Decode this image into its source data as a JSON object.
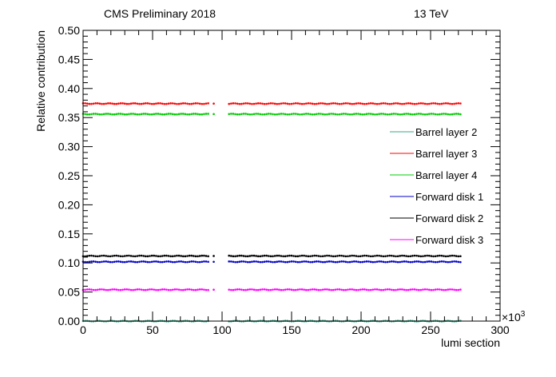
{
  "header": {
    "left_text": "CMS Preliminary 2018",
    "right_text": "13 TeV"
  },
  "chart_data": {
    "type": "scatter",
    "xlabel": "lumi section",
    "ylabel": "Relative contribution",
    "x_multiplier_label": "×10",
    "x_multiplier_exp": "3",
    "xlim": [
      0,
      300
    ],
    "ylim": [
      0,
      0.5
    ],
    "x_ticks": [
      0,
      50,
      100,
      150,
      200,
      250,
      300
    ],
    "x_tick_labels": [
      "0",
      "50",
      "100",
      "150",
      "200",
      "250",
      "300"
    ],
    "y_ticks": [
      0.0,
      0.05,
      0.1,
      0.15,
      0.2,
      0.25,
      0.3,
      0.35,
      0.4,
      0.45,
      0.5
    ],
    "y_tick_labels": [
      "0.00",
      "0.05",
      "0.10",
      "0.15",
      "0.20",
      "0.25",
      "0.30",
      "0.35",
      "0.40",
      "0.45",
      "0.50"
    ],
    "grid": false,
    "legend_position": "right",
    "segments": [
      [
        0,
        90
      ],
      [
        105,
        272
      ]
    ],
    "isolated_x": 94,
    "series": [
      {
        "name": "Barrel layer 2",
        "color": "#33aa88",
        "value": 0.0
      },
      {
        "name": "Barrel layer 3",
        "color": "#ff0000",
        "value": 0.374
      },
      {
        "name": "Barrel layer 4",
        "color": "#00cc00",
        "value": 0.356
      },
      {
        "name": "Forward disk 1",
        "color": "#0000cc",
        "value": 0.102
      },
      {
        "name": "Forward disk 2",
        "color": "#000000",
        "value": 0.112
      },
      {
        "name": "Forward disk 3",
        "color": "#ff00ff",
        "value": 0.054
      }
    ]
  }
}
